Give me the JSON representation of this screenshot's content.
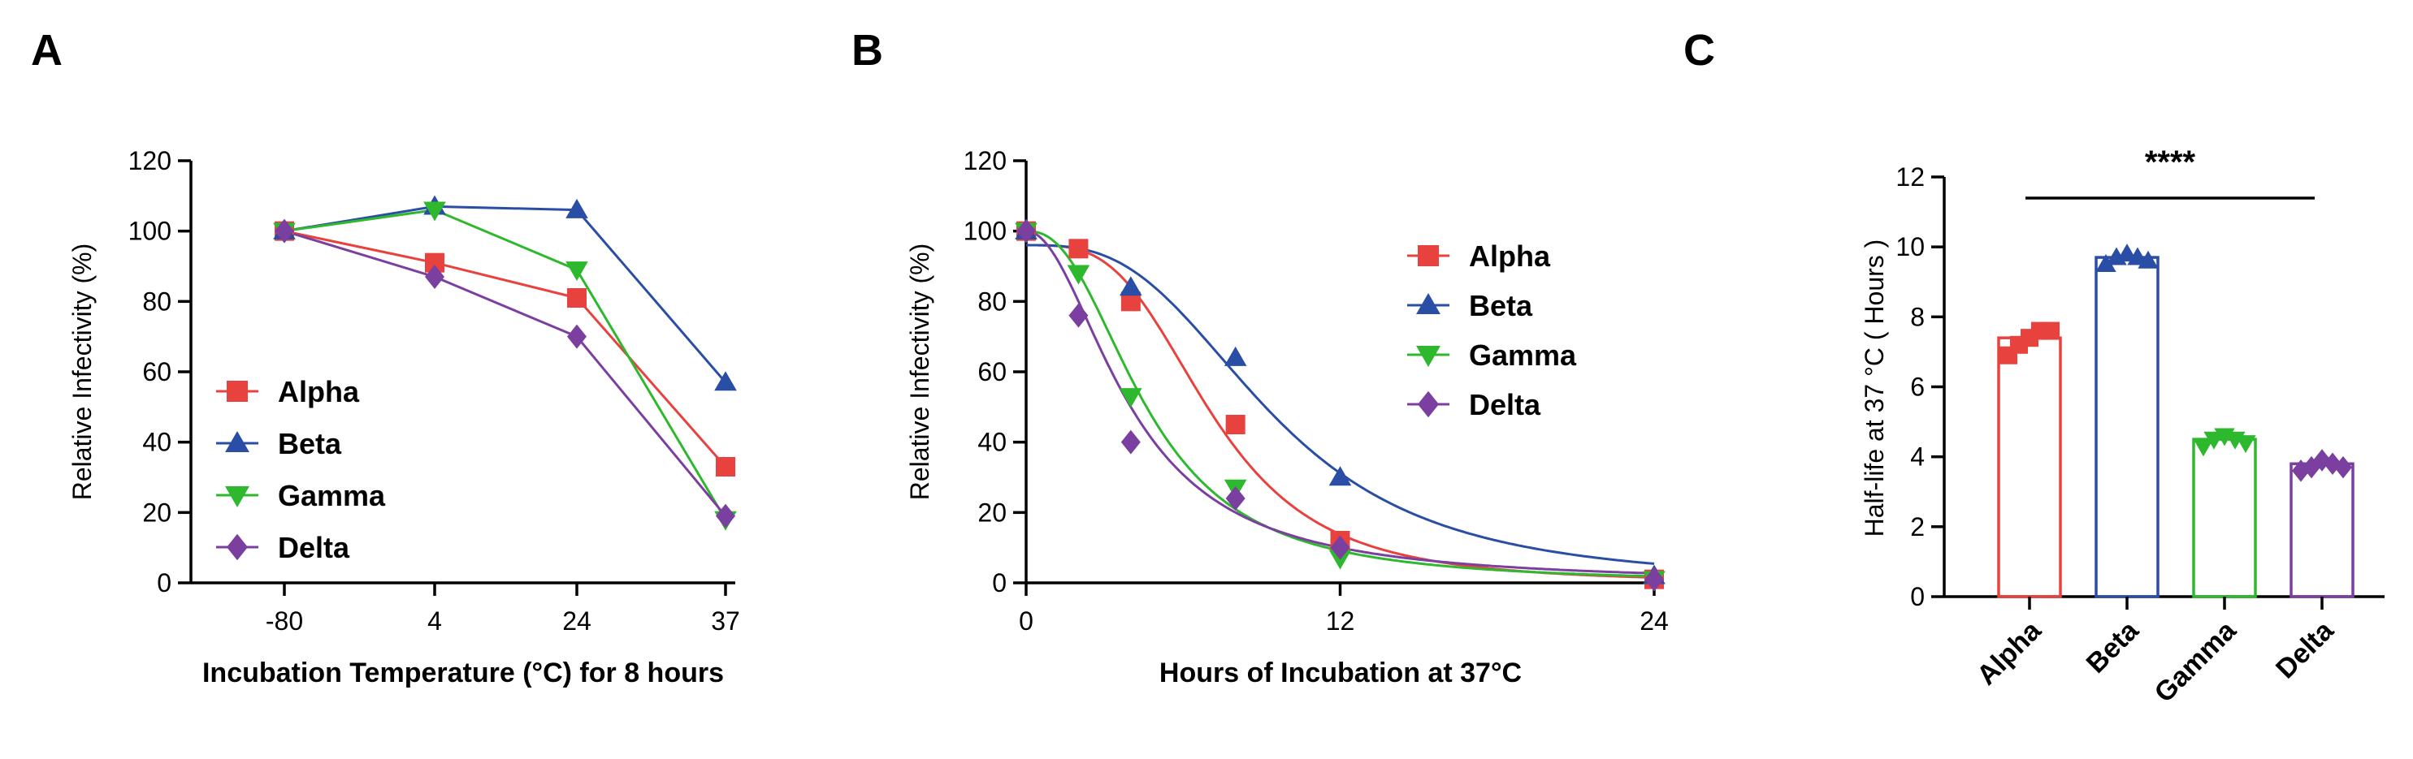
{
  "chart_data": [
    {
      "panel": "A",
      "type": "line",
      "title": "",
      "xlabel": "Incubation Temperature (°C) for 8 hours",
      "ylabel": "Relative Infectivity (%)",
      "categories": [
        "-80",
        "4",
        "24",
        "37"
      ],
      "ylim": [
        0,
        120
      ],
      "yticks": [
        0,
        20,
        40,
        60,
        80,
        100,
        120
      ],
      "legend_position": "bottom-left",
      "series": [
        {
          "name": "Alpha",
          "color": "#e8423f",
          "marker": "square",
          "values": [
            100,
            91,
            81,
            33
          ]
        },
        {
          "name": "Beta",
          "color": "#2a4ea6",
          "marker": "triangle-up",
          "values": [
            100,
            107,
            106,
            57
          ]
        },
        {
          "name": "Gamma",
          "color": "#2eb82e",
          "marker": "triangle-down",
          "values": [
            100,
            106,
            89,
            18
          ]
        },
        {
          "name": "Delta",
          "color": "#7b3fa0",
          "marker": "diamond",
          "values": [
            100,
            87,
            70,
            19
          ]
        }
      ]
    },
    {
      "panel": "B",
      "type": "scatter",
      "title": "",
      "xlabel": "Hours of Incubation at 37°C",
      "ylabel": "Relative Infectivity (%)",
      "xlim": [
        0,
        24
      ],
      "xticks": [
        0,
        12,
        24
      ],
      "ylim": [
        0,
        120
      ],
      "yticks": [
        0,
        20,
        40,
        60,
        80,
        100,
        120
      ],
      "legend_position": "top-right",
      "fit": "sigmoidal decay",
      "series": [
        {
          "name": "Alpha",
          "color": "#e8423f",
          "marker": "square",
          "x": [
            0,
            2,
            4,
            8,
            12,
            24
          ],
          "y": [
            100,
            95,
            80,
            45,
            12,
            1
          ],
          "fit_top": 96,
          "fit_half": 7.1,
          "fit_slope": 3.4
        },
        {
          "name": "Beta",
          "color": "#2a4ea6",
          "marker": "triangle-up",
          "x": [
            0,
            4,
            8,
            12,
            24
          ],
          "y": [
            100,
            84,
            64,
            30,
            2
          ],
          "fit_top": 96,
          "fit_half": 9.4,
          "fit_slope": 3.0
        },
        {
          "name": "Gamma",
          "color": "#2eb82e",
          "marker": "triangle-down",
          "x": [
            0,
            2,
            4,
            8,
            12,
            24
          ],
          "y": [
            100,
            88,
            53,
            27,
            7,
            1
          ],
          "fit_top": 100,
          "fit_half": 4.6,
          "fit_slope": 2.4
        },
        {
          "name": "Delta",
          "color": "#7b3fa0",
          "marker": "diamond",
          "x": [
            0,
            2,
            4,
            8,
            12,
            24
          ],
          "y": [
            100,
            76,
            40,
            24,
            10,
            1
          ],
          "fit_top": 100,
          "fit_half": 4.0,
          "fit_slope": 2.0
        }
      ]
    },
    {
      "panel": "C",
      "type": "bar",
      "title": "",
      "xlabel": "",
      "ylabel": "Half-life at 37 °C ( Hours )",
      "categories": [
        "Alpha",
        "Beta",
        "Gamma",
        "Delta"
      ],
      "colors": [
        "#e8423f",
        "#2a4ea6",
        "#2eb82e",
        "#7b3fa0"
      ],
      "markers": [
        "square",
        "triangle-up",
        "triangle-down",
        "diamond"
      ],
      "values": [
        7.4,
        9.7,
        4.5,
        3.8
      ],
      "points": [
        [
          6.9,
          7.2,
          7.4,
          7.6,
          7.6
        ],
        [
          9.5,
          9.7,
          9.8,
          9.7,
          9.6
        ],
        [
          4.3,
          4.5,
          4.6,
          4.5,
          4.4
        ],
        [
          3.6,
          3.7,
          3.9,
          3.8,
          3.7
        ]
      ],
      "ylim": [
        0,
        12
      ],
      "yticks": [
        0,
        2,
        4,
        6,
        8,
        10,
        12
      ],
      "significance": "****"
    }
  ]
}
